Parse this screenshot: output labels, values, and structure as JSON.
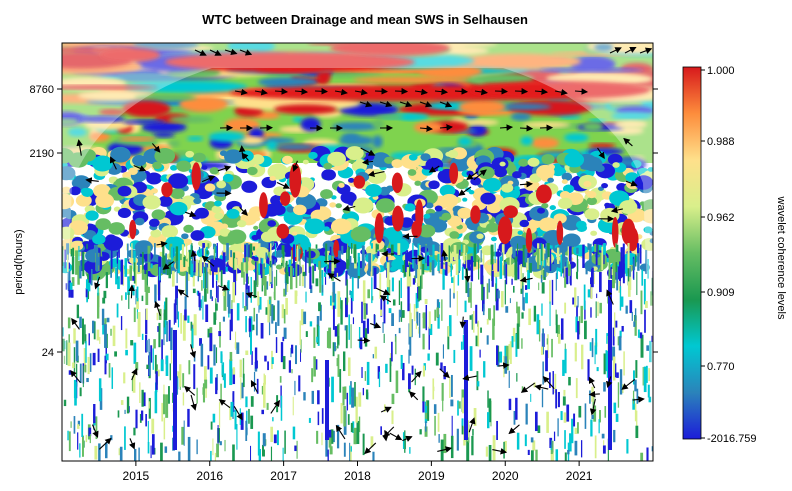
{
  "chart_data": {
    "type": "heatmap",
    "title": "WTC between Drainage and mean SWS in Selhausen",
    "ylabel": "period(hours)",
    "xlabel": "",
    "x_tick_labels": [
      "2015",
      "2016",
      "2017",
      "2018",
      "2019",
      "2020",
      "2021"
    ],
    "x_tick_values": [
      2015,
      2016,
      2017,
      2018,
      2019,
      2020,
      2021
    ],
    "xlim": [
      2014,
      2022
    ],
    "y_tick_labels": [
      "8760",
      "2190",
      "24"
    ],
    "y_tick_values": [
      8760,
      2190,
      24
    ],
    "y_scale": "log2",
    "ylim_note": "period axis inverted: long periods at top",
    "colorbar": {
      "label": "wavelet coherence levels",
      "tick_labels": [
        "1.000",
        "0.988",
        "0.962",
        "0.909",
        "0.770",
        "-2016.759"
      ],
      "colors": [
        "#d7191c",
        "#fd8d3c",
        "#fee08b",
        "#d9ef8b",
        "#66bd63",
        "#1a9850",
        "#00c8d2",
        "#2b83ba",
        "#1c1cd9"
      ],
      "color_hex_top": "#e31a1c",
      "color_hex_bottom": "#2323d7"
    },
    "annotations": {
      "arrows": "phase arrows overlaid on significant regions",
      "cone_of_influence": "shaded (faded) region near edges",
      "significance_contours": "white contours"
    }
  }
}
